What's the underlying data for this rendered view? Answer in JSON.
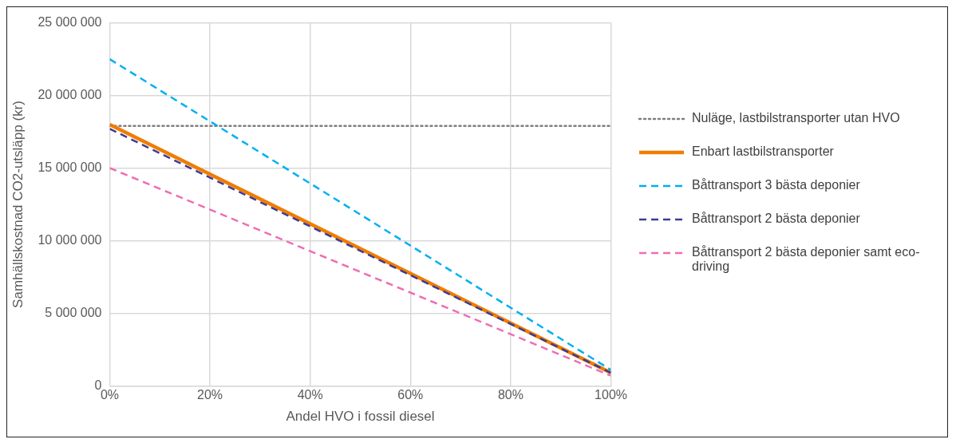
{
  "chart_data": {
    "type": "line",
    "xlabel": "Andel HVO i fossil diesel",
    "ylabel": "Samhällskostnad CO2-utsläpp (kr)",
    "x": [
      0,
      100
    ],
    "series": [
      {
        "name": "Nuläge, lastbilstransporter utan HVO",
        "color": "#7f7f7f",
        "line_style": "dotted",
        "values": [
          17900000,
          17900000
        ]
      },
      {
        "name": "Enbart lastbilstransporter",
        "color": "#f07d00",
        "line_style": "solid",
        "values": [
          18000000,
          900000
        ]
      },
      {
        "name": "Båttransport 3 bästa deponier",
        "color": "#00b0f0",
        "line_style": "dashed",
        "values": [
          22500000,
          1100000
        ]
      },
      {
        "name": "Båttransport 2 bästa deponier",
        "color": "#3c3c96",
        "line_style": "dashed",
        "values": [
          17700000,
          900000
        ]
      },
      {
        "name": "Båttransport 2 bästa deponier samt eco-driving",
        "color": "#ee6eb4",
        "line_style": "dashed",
        "values": [
          15000000,
          700000
        ]
      }
    ],
    "xlim": [
      0,
      100
    ],
    "xticks": [
      {
        "value": 0,
        "label": "0%"
      },
      {
        "value": 20,
        "label": "20%"
      },
      {
        "value": 40,
        "label": "40%"
      },
      {
        "value": 60,
        "label": "60%"
      },
      {
        "value": 80,
        "label": "80%"
      },
      {
        "value": 100,
        "label": "100%"
      }
    ],
    "ylim": [
      0,
      25000000
    ],
    "yticks": [
      {
        "value": 0,
        "label": "0"
      },
      {
        "value": 5000000,
        "label": "5 000 000"
      },
      {
        "value": 10000000,
        "label": "10 000 000"
      },
      {
        "value": 15000000,
        "label": "15 000 000"
      },
      {
        "value": 20000000,
        "label": "20 000 000"
      },
      {
        "value": 25000000,
        "label": "25 000 000"
      }
    ],
    "grid": true,
    "legend": "right",
    "marker": "none"
  }
}
